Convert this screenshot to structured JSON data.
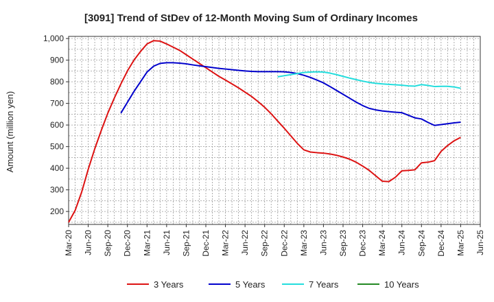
{
  "chart_data": {
    "type": "line",
    "title": "[3091]  Trend of StDev of 12-Month Moving Sum of Ordinary Incomes",
    "ylabel": "Amount (million yen)",
    "xlabel": "",
    "x_ticks": [
      "Mar-20",
      "Jun-20",
      "Sep-20",
      "Dec-20",
      "Mar-21",
      "Jun-21",
      "Sep-21",
      "Dec-21",
      "Mar-22",
      "Jun-22",
      "Sep-22",
      "Dec-22",
      "Mar-23",
      "Jun-23",
      "Sep-23",
      "Dec-23",
      "Mar-24",
      "Jun-24",
      "Sep-24",
      "Dec-24",
      "Mar-25",
      "Jun-25"
    ],
    "y_ticks": [
      "200",
      "300",
      "400",
      "500",
      "600",
      "700",
      "800",
      "900",
      "1,000"
    ],
    "ylim": [
      140,
      1010
    ],
    "grid": true,
    "legend_position": "bottom",
    "series": [
      {
        "name": "3 Years",
        "color": "#dd1111",
        "points": [
          [
            "2020-03",
            150
          ],
          [
            "2020-04",
            205
          ],
          [
            "2020-05",
            290
          ],
          [
            "2020-06",
            395
          ],
          [
            "2020-07",
            490
          ],
          [
            "2020-08",
            575
          ],
          [
            "2020-09",
            655
          ],
          [
            "2020-10",
            725
          ],
          [
            "2020-11",
            790
          ],
          [
            "2020-12",
            850
          ],
          [
            "2021-01",
            900
          ],
          [
            "2021-02",
            940
          ],
          [
            "2021-03",
            975
          ],
          [
            "2021-04",
            990
          ],
          [
            "2021-05",
            988
          ],
          [
            "2021-06",
            975
          ],
          [
            "2021-07",
            960
          ],
          [
            "2021-08",
            945
          ],
          [
            "2021-09",
            925
          ],
          [
            "2021-10",
            905
          ],
          [
            "2021-11",
            885
          ],
          [
            "2021-12",
            865
          ],
          [
            "2022-01",
            845
          ],
          [
            "2022-02",
            825
          ],
          [
            "2022-03",
            808
          ],
          [
            "2022-04",
            790
          ],
          [
            "2022-05",
            772
          ],
          [
            "2022-06",
            752
          ],
          [
            "2022-07",
            732
          ],
          [
            "2022-08",
            708
          ],
          [
            "2022-09",
            682
          ],
          [
            "2022-10",
            652
          ],
          [
            "2022-11",
            618
          ],
          [
            "2022-12",
            585
          ],
          [
            "2023-01",
            550
          ],
          [
            "2023-02",
            515
          ],
          [
            "2023-03",
            485
          ],
          [
            "2023-04",
            475
          ],
          [
            "2023-05",
            472
          ],
          [
            "2023-06",
            470
          ],
          [
            "2023-07",
            466
          ],
          [
            "2023-08",
            460
          ],
          [
            "2023-09",
            452
          ],
          [
            "2023-10",
            442
          ],
          [
            "2023-11",
            428
          ],
          [
            "2023-12",
            410
          ],
          [
            "2024-01",
            390
          ],
          [
            "2024-02",
            365
          ],
          [
            "2024-03",
            340
          ],
          [
            "2024-04",
            338
          ],
          [
            "2024-05",
            358
          ],
          [
            "2024-06",
            388
          ],
          [
            "2024-07",
            390
          ],
          [
            "2024-08",
            393
          ],
          [
            "2024-09",
            425
          ],
          [
            "2024-10",
            428
          ],
          [
            "2024-11",
            435
          ],
          [
            "2024-12",
            478
          ],
          [
            "2025-01",
            505
          ],
          [
            "2025-02",
            527
          ],
          [
            "2025-03",
            543
          ]
        ]
      },
      {
        "name": "5 Years",
        "color": "#0000cc",
        "points": [
          [
            "2020-11",
            655
          ],
          [
            "2020-12",
            705
          ],
          [
            "2021-01",
            755
          ],
          [
            "2021-02",
            800
          ],
          [
            "2021-03",
            845
          ],
          [
            "2021-04",
            872
          ],
          [
            "2021-05",
            885
          ],
          [
            "2021-06",
            888
          ],
          [
            "2021-07",
            888
          ],
          [
            "2021-08",
            886
          ],
          [
            "2021-09",
            883
          ],
          [
            "2021-10",
            878
          ],
          [
            "2021-11",
            874
          ],
          [
            "2021-12",
            870
          ],
          [
            "2022-01",
            866
          ],
          [
            "2022-02",
            862
          ],
          [
            "2022-03",
            859
          ],
          [
            "2022-04",
            856
          ],
          [
            "2022-05",
            853
          ],
          [
            "2022-06",
            850
          ],
          [
            "2022-07",
            848
          ],
          [
            "2022-08",
            847
          ],
          [
            "2022-09",
            847
          ],
          [
            "2022-10",
            847
          ],
          [
            "2022-11",
            847
          ],
          [
            "2022-12",
            846
          ],
          [
            "2023-01",
            843
          ],
          [
            "2023-02",
            838
          ],
          [
            "2023-03",
            830
          ],
          [
            "2023-04",
            820
          ],
          [
            "2023-05",
            808
          ],
          [
            "2023-06",
            795
          ],
          [
            "2023-07",
            778
          ],
          [
            "2023-08",
            760
          ],
          [
            "2023-09",
            742
          ],
          [
            "2023-10",
            724
          ],
          [
            "2023-11",
            706
          ],
          [
            "2023-12",
            690
          ],
          [
            "2024-01",
            677
          ],
          [
            "2024-02",
            670
          ],
          [
            "2024-03",
            665
          ],
          [
            "2024-04",
            662
          ],
          [
            "2024-05",
            659
          ],
          [
            "2024-06",
            657
          ],
          [
            "2024-07",
            645
          ],
          [
            "2024-08",
            633
          ],
          [
            "2024-09",
            628
          ],
          [
            "2024-10",
            612
          ],
          [
            "2024-11",
            598
          ],
          [
            "2024-12",
            602
          ],
          [
            "2025-01",
            606
          ],
          [
            "2025-02",
            610
          ],
          [
            "2025-03",
            613
          ]
        ]
      },
      {
        "name": "7 Years",
        "color": "#22dddd",
        "points": [
          [
            "2022-11",
            823
          ],
          [
            "2022-12",
            828
          ],
          [
            "2023-01",
            833
          ],
          [
            "2023-02",
            838
          ],
          [
            "2023-03",
            843
          ],
          [
            "2023-04",
            845
          ],
          [
            "2023-05",
            846
          ],
          [
            "2023-06",
            845
          ],
          [
            "2023-07",
            840
          ],
          [
            "2023-08",
            833
          ],
          [
            "2023-09",
            825
          ],
          [
            "2023-10",
            817
          ],
          [
            "2023-11",
            810
          ],
          [
            "2023-12",
            803
          ],
          [
            "2024-01",
            797
          ],
          [
            "2024-02",
            793
          ],
          [
            "2024-03",
            790
          ],
          [
            "2024-04",
            788
          ],
          [
            "2024-05",
            786
          ],
          [
            "2024-06",
            784
          ],
          [
            "2024-07",
            781
          ],
          [
            "2024-08",
            780
          ],
          [
            "2024-09",
            787
          ],
          [
            "2024-10",
            783
          ],
          [
            "2024-11",
            778
          ],
          [
            "2024-12",
            779
          ],
          [
            "2025-01",
            779
          ],
          [
            "2025-02",
            776
          ],
          [
            "2025-03",
            770
          ]
        ]
      },
      {
        "name": "10 Years",
        "color": "#228822",
        "points": []
      }
    ]
  }
}
